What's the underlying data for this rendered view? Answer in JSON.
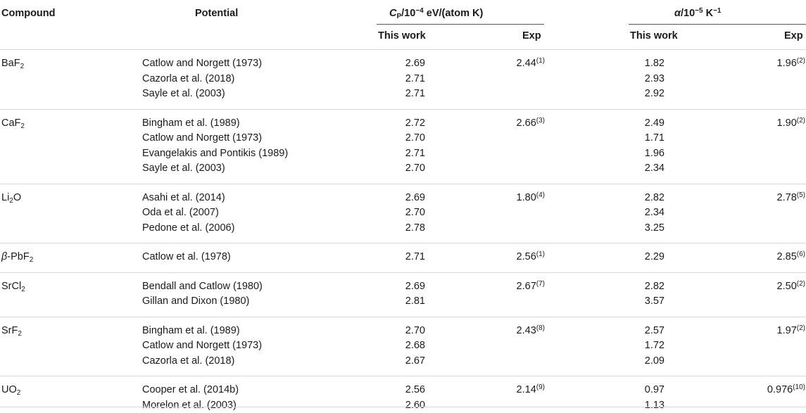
{
  "headers": {
    "compound": "Compound",
    "potential": "Potential",
    "cp": {
      "main": "C",
      "sub": "P",
      "rest": "/10",
      "exp": "−4",
      "unit": " eV/(atom K)"
    },
    "alpha": {
      "sym": "α",
      "rest": "/10",
      "exp": "−5",
      "unit": " K",
      "unit_exp": "−1"
    },
    "this_work": "This work",
    "exp": "Exp"
  },
  "groups": [
    {
      "compound": {
        "pre": "",
        "base": "BaF",
        "sub": "2",
        "post": ""
      },
      "rows": [
        {
          "potential": "Catlow and Norgett (1973)",
          "cp": "2.69",
          "cp_exp": "2.44",
          "cp_ref": "(1)",
          "alpha": "1.82",
          "alpha_exp": "1.96",
          "alpha_ref": "(2)"
        },
        {
          "potential": "Cazorla et al. (2018)",
          "cp": "2.71",
          "alpha": "2.93"
        },
        {
          "potential": "Sayle et al. (2003)",
          "cp": "2.71",
          "alpha": "2.92"
        }
      ]
    },
    {
      "compound": {
        "pre": "",
        "base": "CaF",
        "sub": "2",
        "post": ""
      },
      "rows": [
        {
          "potential": "Bingham et al. (1989)",
          "cp": "2.72",
          "cp_exp": "2.66",
          "cp_ref": "(3)",
          "alpha": "2.49",
          "alpha_exp": "1.90",
          "alpha_ref": "(2)"
        },
        {
          "potential": "Catlow and Norgett (1973)",
          "cp": "2.70",
          "alpha": "1.71"
        },
        {
          "potential": "Evangelakis and Pontikis (1989)",
          "cp": "2.71",
          "alpha": "1.96"
        },
        {
          "potential": "Sayle et al. (2003)",
          "cp": "2.70",
          "alpha": "2.34"
        }
      ]
    },
    {
      "compound": {
        "pre": "",
        "base": "Li",
        "sub": "2",
        "post": "O"
      },
      "rows": [
        {
          "potential": "Asahi et al. (2014)",
          "cp": "2.69",
          "cp_exp": "1.80",
          "cp_ref": "(4)",
          "alpha": "2.82",
          "alpha_exp": "2.78",
          "alpha_ref": "(5)"
        },
        {
          "potential": "Oda et al. (2007)",
          "cp": "2.70",
          "alpha": "2.34"
        },
        {
          "potential": "Pedone et al. (2006)",
          "cp": "2.78",
          "alpha": "3.25"
        }
      ]
    },
    {
      "compound": {
        "pre": "β",
        "base": "-PbF",
        "sub": "2",
        "post": ""
      },
      "rows": [
        {
          "potential": "Catlow et al. (1978)",
          "cp": "2.71",
          "cp_exp": "2.56",
          "cp_ref": "(1)",
          "alpha": "2.29",
          "alpha_exp": "2.85",
          "alpha_ref": "(6)"
        }
      ]
    },
    {
      "compound": {
        "pre": "",
        "base": "SrCl",
        "sub": "2",
        "post": ""
      },
      "rows": [
        {
          "potential": "Bendall and Catlow (1980)",
          "cp": "2.69",
          "cp_exp": "2.67",
          "cp_ref": "(7)",
          "alpha": "2.82",
          "alpha_exp": "2.50",
          "alpha_ref": "(2)"
        },
        {
          "potential": "Gillan and Dixon (1980)",
          "cp": "2.81",
          "alpha": "3.57"
        }
      ]
    },
    {
      "compound": {
        "pre": "",
        "base": "SrF",
        "sub": "2",
        "post": ""
      },
      "rows": [
        {
          "potential": "Bingham et al. (1989)",
          "cp": "2.70",
          "cp_exp": "2.43",
          "cp_ref": "(8)",
          "alpha": "2.57",
          "alpha_exp": "1.97",
          "alpha_ref": "(2)"
        },
        {
          "potential": "Catlow and Norgett (1973)",
          "cp": "2.68",
          "alpha": "1.72"
        },
        {
          "potential": "Cazorla et al. (2018)",
          "cp": "2.67",
          "alpha": "2.09"
        }
      ]
    },
    {
      "compound": {
        "pre": "",
        "base": "UO",
        "sub": "2",
        "post": ""
      },
      "rows": [
        {
          "potential": "Cooper et al. (2014b)",
          "cp": "2.56",
          "cp_exp": "2.14",
          "cp_ref": "(9)",
          "alpha": "0.97",
          "alpha_exp": "0.976",
          "alpha_ref": "(10)"
        },
        {
          "potential": "Morelon et al. (2003)",
          "cp": "2.60",
          "alpha": "1.13"
        }
      ]
    }
  ]
}
